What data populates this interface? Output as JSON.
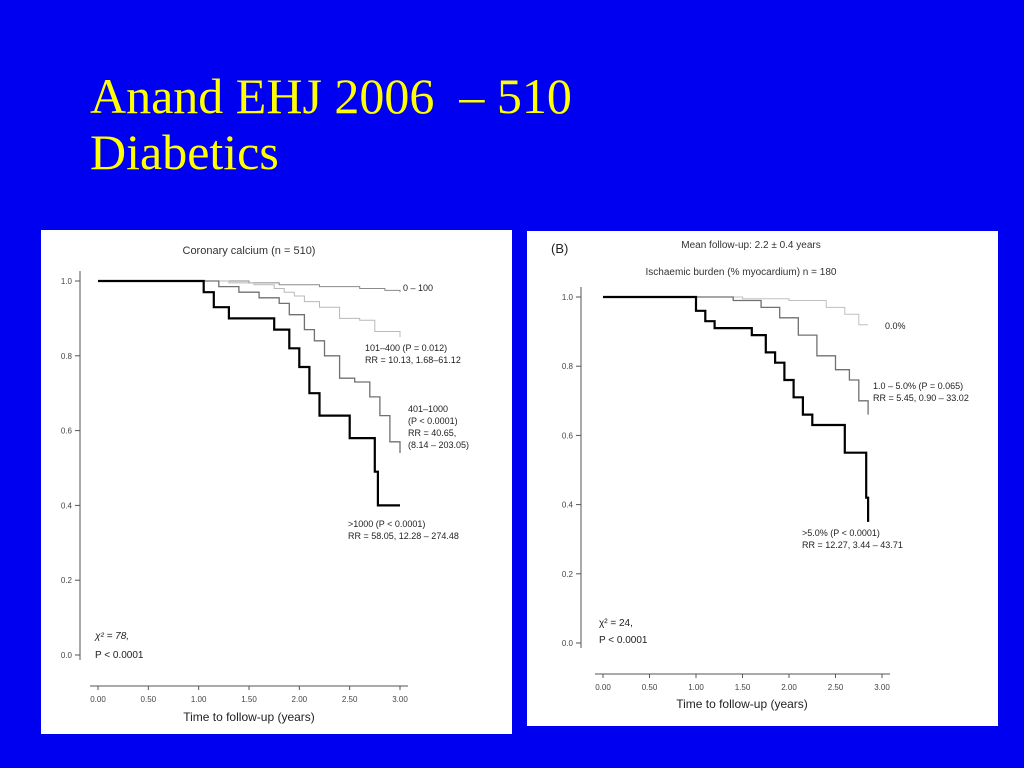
{
  "slide": {
    "title_line1": "Anand EHJ 2006  – 510",
    "title_line2": "Diabetics",
    "background_color": "#0000f0",
    "title_color": "#ffff00"
  },
  "chart_data": [
    {
      "type": "line",
      "title": "Coronary calcium (n = 510)",
      "xlabel": "Time to follow-up (years)",
      "ylabel": "",
      "xlim": [
        0,
        3
      ],
      "ylim": [
        0,
        1
      ],
      "x_ticks": [
        "0.00",
        "0.50",
        "1.00",
        "1.50",
        "2.00",
        "2.50",
        "3.00"
      ],
      "y_ticks": [
        "0.0",
        "0.2",
        "0.4",
        "0.6",
        "0.8",
        "1.0"
      ],
      "grid": false,
      "stats": [
        "χ² = 78,",
        "P < 0.0001"
      ],
      "series": [
        {
          "name": "0–100",
          "color": "#8a8a8a",
          "stroke": 1,
          "points": [
            [
              0.0,
              1.0
            ],
            [
              1.0,
              1.0
            ],
            [
              1.3,
              1.0
            ],
            [
              1.5,
              0.995
            ],
            [
              1.8,
              0.99
            ],
            [
              2.2,
              0.985
            ],
            [
              2.6,
              0.98
            ],
            [
              2.85,
              0.975
            ],
            [
              3.0,
              0.97
            ]
          ],
          "label_lines": [
            "0 – 100"
          ]
        },
        {
          "name": "101–400",
          "color": "#b8b8b8",
          "stroke": 1,
          "points": [
            [
              0.0,
              1.0
            ],
            [
              1.0,
              1.0
            ],
            [
              1.3,
              0.995
            ],
            [
              1.55,
              0.99
            ],
            [
              1.75,
              0.98
            ],
            [
              1.85,
              0.97
            ],
            [
              1.95,
              0.96
            ],
            [
              2.05,
              0.945
            ],
            [
              2.2,
              0.93
            ],
            [
              2.4,
              0.9
            ],
            [
              2.6,
              0.895
            ],
            [
              2.75,
              0.865
            ],
            [
              3.0,
              0.85
            ]
          ],
          "label_lines": [
            "101–400 (P = 0.012)",
            "RR = 10.13, 1.68–61.12"
          ]
        },
        {
          "name": "401–1000",
          "color": "#707070",
          "stroke": 1.3,
          "points": [
            [
              0.0,
              1.0
            ],
            [
              1.0,
              1.0
            ],
            [
              1.2,
              0.985
            ],
            [
              1.4,
              0.97
            ],
            [
              1.6,
              0.955
            ],
            [
              1.8,
              0.94
            ],
            [
              1.9,
              0.91
            ],
            [
              2.05,
              0.87
            ],
            [
              2.15,
              0.84
            ],
            [
              2.25,
              0.8
            ],
            [
              2.4,
              0.74
            ],
            [
              2.55,
              0.73
            ],
            [
              2.7,
              0.69
            ],
            [
              2.8,
              0.64
            ],
            [
              2.9,
              0.57
            ],
            [
              3.0,
              0.54
            ]
          ],
          "label_lines": [
            "401–1000",
            "(P < 0.0001)",
            "RR = 40.65,",
            "(8.14 – 203.05)"
          ]
        },
        {
          "name": ">1000",
          "color": "#000000",
          "stroke": 2.2,
          "points": [
            [
              0.0,
              1.0
            ],
            [
              1.0,
              1.0
            ],
            [
              1.05,
              0.97
            ],
            [
              1.15,
              0.93
            ],
            [
              1.3,
              0.9
            ],
            [
              1.5,
              0.9
            ],
            [
              1.75,
              0.87
            ],
            [
              1.9,
              0.82
            ],
            [
              2.0,
              0.77
            ],
            [
              2.1,
              0.7
            ],
            [
              2.2,
              0.64
            ],
            [
              2.4,
              0.64
            ],
            [
              2.5,
              0.58
            ],
            [
              2.65,
              0.58
            ],
            [
              2.75,
              0.49
            ],
            [
              2.78,
              0.4
            ],
            [
              3.0,
              0.4
            ]
          ],
          "label_lines": [
            ">1000 (P < 0.0001)",
            "RR = 58.05, 12.28 – 274.48"
          ]
        }
      ]
    },
    {
      "type": "line",
      "panel_label": "(B)",
      "title": "Mean follow-up: 2.2 ± 0.4 years",
      "subtitle": "Ischaemic burden (% myocardium) n = 180",
      "xlabel": "Time to follow-up (years)",
      "ylabel": "",
      "xlim": [
        0,
        3
      ],
      "ylim": [
        0,
        1
      ],
      "x_ticks": [
        "0.00",
        "0.50",
        "1.00",
        "1.50",
        "2.00",
        "2.50",
        "3.00"
      ],
      "y_ticks": [
        "0.0",
        "0.2",
        "0.4",
        "0.6",
        "0.8",
        "1.0"
      ],
      "grid": false,
      "stats": [
        "χ² = 24,",
        "P < 0.0001"
      ],
      "series": [
        {
          "name": "0.0%",
          "color": "#c0c0c0",
          "stroke": 1,
          "points": [
            [
              0.0,
              1.0
            ],
            [
              1.0,
              1.0
            ],
            [
              1.5,
              0.995
            ],
            [
              2.0,
              0.99
            ],
            [
              2.4,
              0.97
            ],
            [
              2.6,
              0.95
            ],
            [
              2.75,
              0.92
            ],
            [
              2.85,
              0.92
            ]
          ],
          "label_lines": [
            "0.0%"
          ]
        },
        {
          "name": "1.0–5.0%",
          "color": "#707070",
          "stroke": 1.3,
          "points": [
            [
              0.0,
              1.0
            ],
            [
              1.0,
              1.0
            ],
            [
              1.4,
              0.99
            ],
            [
              1.7,
              0.97
            ],
            [
              1.9,
              0.94
            ],
            [
              2.1,
              0.89
            ],
            [
              2.3,
              0.83
            ],
            [
              2.5,
              0.79
            ],
            [
              2.65,
              0.76
            ],
            [
              2.75,
              0.7
            ],
            [
              2.85,
              0.66
            ]
          ],
          "label_lines": [
            "1.0 – 5.0% (P = 0.065)",
            "RR = 5.45, 0.90 – 33.02"
          ]
        },
        {
          "name": ">5.0%",
          "color": "#000000",
          "stroke": 2.2,
          "points": [
            [
              0.0,
              1.0
            ],
            [
              0.9,
              1.0
            ],
            [
              1.0,
              0.96
            ],
            [
              1.1,
              0.93
            ],
            [
              1.2,
              0.91
            ],
            [
              1.5,
              0.91
            ],
            [
              1.6,
              0.89
            ],
            [
              1.75,
              0.84
            ],
            [
              1.85,
              0.81
            ],
            [
              1.95,
              0.76
            ],
            [
              2.05,
              0.71
            ],
            [
              2.15,
              0.66
            ],
            [
              2.25,
              0.63
            ],
            [
              2.5,
              0.63
            ],
            [
              2.6,
              0.55
            ],
            [
              2.8,
              0.55
            ],
            [
              2.83,
              0.42
            ],
            [
              2.85,
              0.35
            ]
          ],
          "label_lines": [
            ">5.0% (P < 0.0001)",
            "RR = 12.27, 3.44 – 43.71"
          ]
        }
      ]
    }
  ]
}
